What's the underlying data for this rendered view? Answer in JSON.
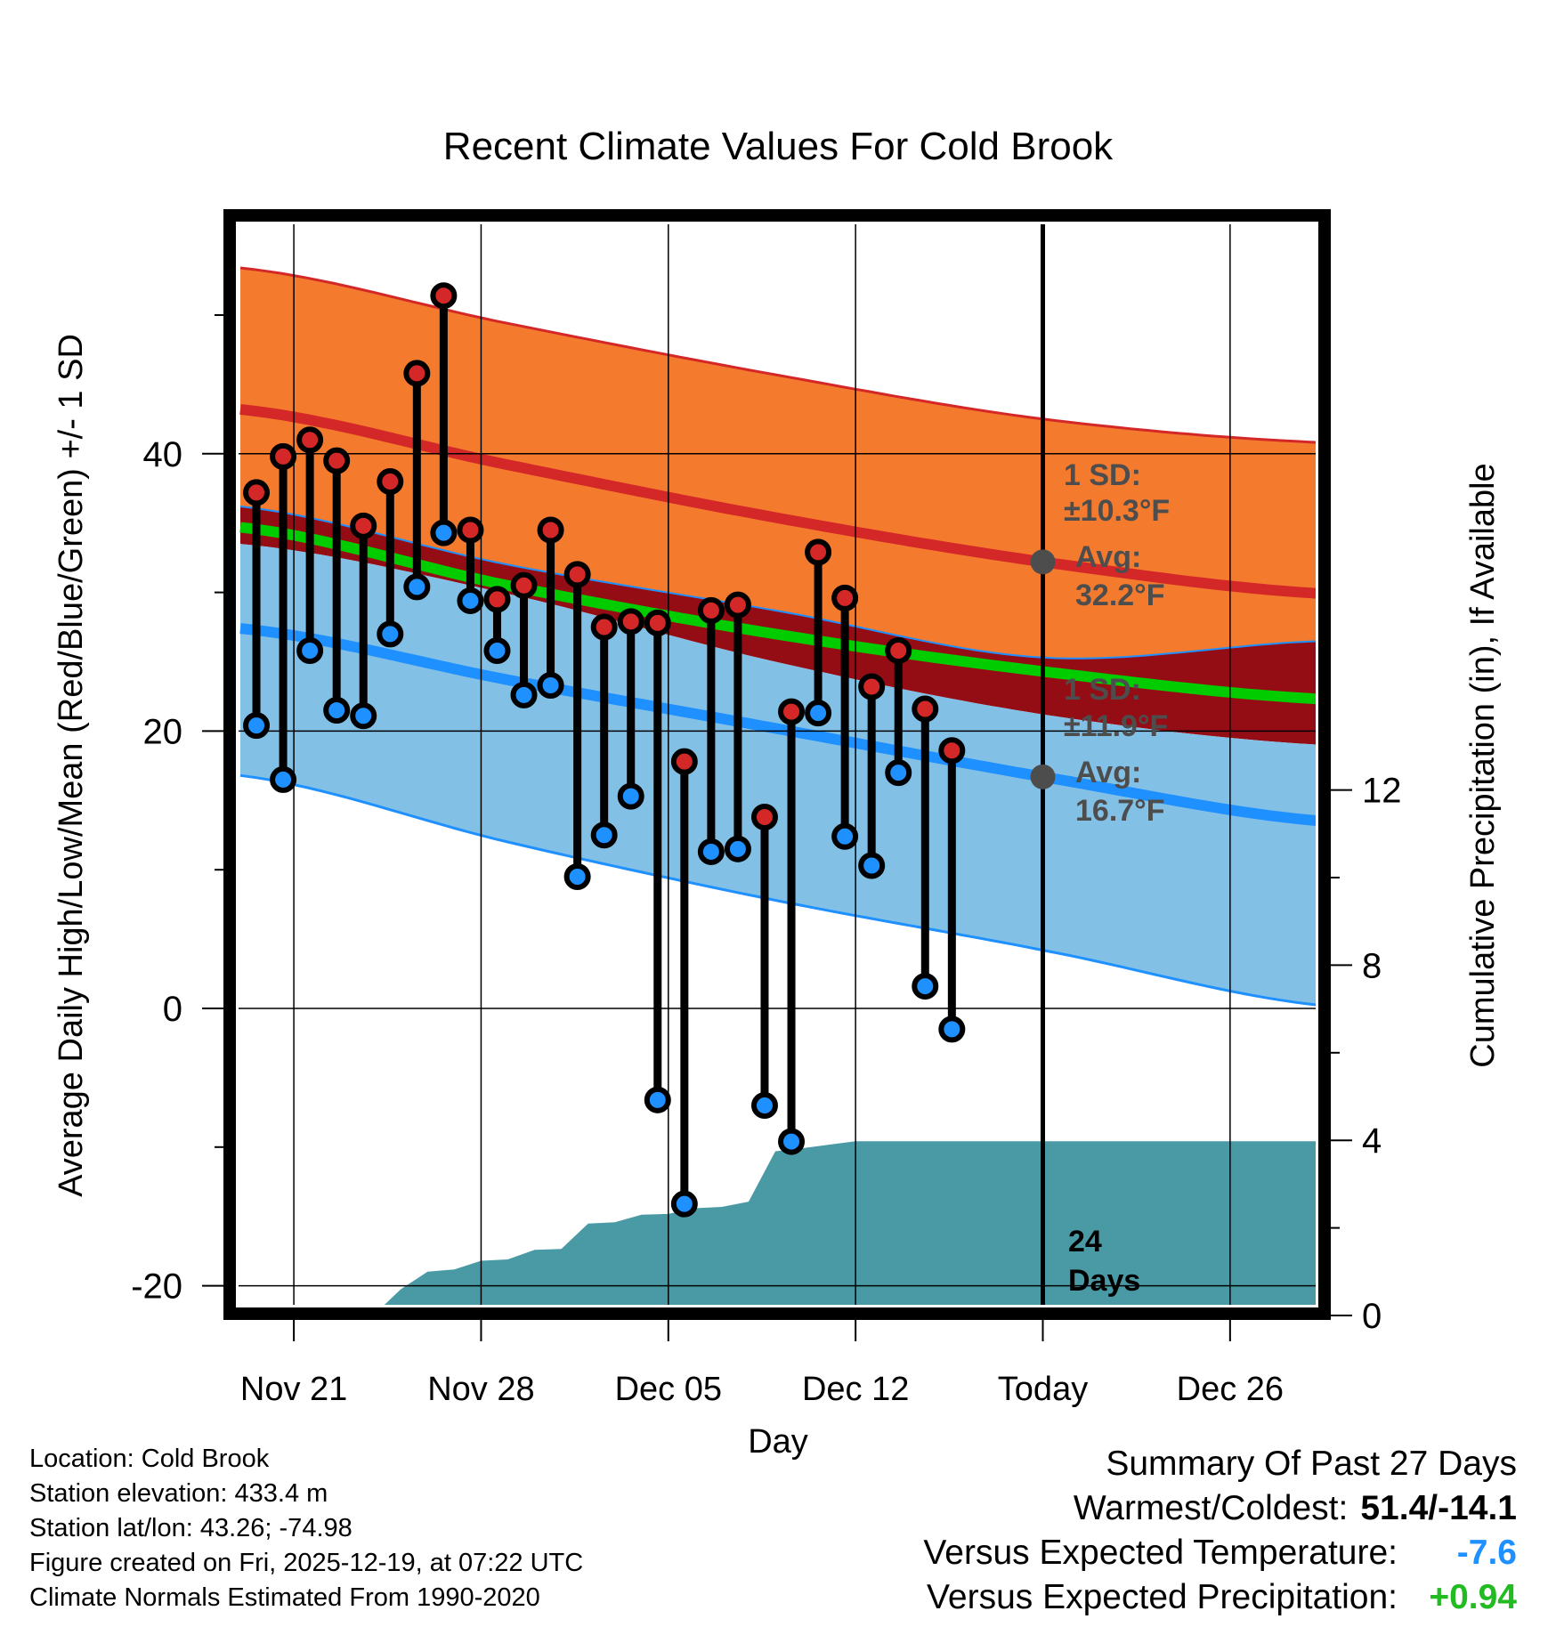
{
  "chart_data": {
    "type": "line",
    "title": "Recent Climate Values For Cold Brook",
    "xlabel": "Day",
    "ylabel": "Average Daily High/Low/Mean (Red/Blue/Green) +/- 1 SD",
    "y2label": "Cumulative Precipitation (in), If Available",
    "x_tick_labels": [
      "Nov 21",
      "Nov 28",
      "Dec 05",
      "Dec 12",
      "Today",
      "Dec 26"
    ],
    "x_tick_days": [
      2,
      9,
      16,
      23,
      30,
      37
    ],
    "today_day": 30,
    "x_range": [
      0,
      40.5
    ],
    "ylim": [
      -22,
      55
    ],
    "y_ticks": [
      -20,
      0,
      20,
      40
    ],
    "y2lim": [
      0,
      25
    ],
    "y2_ticks": [
      0,
      4,
      8,
      12
    ],
    "normals": {
      "days": [
        0,
        10,
        20,
        30,
        40.5
      ],
      "high_mean": [
        43.2,
        39.2,
        35.4,
        32.2,
        29.9
      ],
      "high_upper": [
        53.4,
        49.4,
        45.7,
        42.5,
        40.8
      ],
      "high_lower": [
        36.2,
        32.0,
        28.7,
        25.3,
        26.5
      ],
      "mean": [
        34.7,
        30.5,
        27.0,
        24.3,
        22.3
      ],
      "low_mean": [
        27.4,
        23.7,
        20.2,
        16.7,
        13.5
      ],
      "low_upper": [
        33.5,
        29.9,
        25.0,
        21.2,
        19.0
      ],
      "low_lower": [
        16.8,
        12.0,
        7.8,
        4.2,
        0.2
      ]
    },
    "series": [
      {
        "name": "Daily High",
        "color": "#d42828",
        "days": [
          0.6,
          1.6,
          2.6,
          3.6,
          4.6,
          5.6,
          6.6,
          7.6,
          8.6,
          9.6,
          10.6,
          11.6,
          12.6,
          13.6,
          14.6,
          15.6,
          16.6,
          17.6,
          18.6,
          19.6,
          20.6,
          21.6,
          22.6,
          23.6,
          24.6,
          25.6,
          26.6
        ],
        "values": [
          37.2,
          39.8,
          41.0,
          39.5,
          34.8,
          38.0,
          45.8,
          51.4,
          34.5,
          29.5,
          30.5,
          34.5,
          31.3,
          27.5,
          27.9,
          27.8,
          17.8,
          28.7,
          29.1,
          13.8,
          21.4,
          32.9,
          29.6,
          23.2,
          25.8,
          21.6,
          18.6
        ]
      },
      {
        "name": "Daily Low",
        "color": "#1e90ff",
        "days": [
          0.6,
          1.6,
          2.6,
          3.6,
          4.6,
          5.6,
          6.6,
          7.6,
          8.6,
          9.6,
          10.6,
          11.6,
          12.6,
          13.6,
          14.6,
          15.6,
          16.6,
          17.6,
          18.6,
          19.6,
          20.6,
          21.6,
          22.6,
          23.6,
          24.6,
          25.6,
          26.6
        ],
        "values": [
          20.4,
          16.5,
          25.8,
          21.5,
          21.1,
          27.0,
          30.4,
          34.3,
          29.4,
          25.8,
          22.6,
          23.3,
          9.5,
          12.5,
          15.3,
          -6.6,
          -14.1,
          11.3,
          11.5,
          -7.0,
          -9.6,
          21.3,
          12.4,
          10.3,
          17.0,
          1.6,
          -1.5
        ]
      },
      {
        "name": "Cumulative Precipitation",
        "color": "#4a9aa5",
        "days": [
          0,
          4,
          5,
          6,
          7,
          8,
          9,
          10,
          11,
          12,
          13,
          14,
          15,
          16,
          17,
          18,
          19,
          20,
          21,
          22,
          23,
          40.5
        ],
        "values": [
          0,
          0,
          0.02,
          0.6,
          1.0,
          1.05,
          1.25,
          1.28,
          1.5,
          1.52,
          2.1,
          2.13,
          2.3,
          2.32,
          2.45,
          2.48,
          2.6,
          3.75,
          3.82,
          3.9,
          3.98,
          3.98
        ]
      }
    ],
    "annotations": {
      "high_sd_label": "1 SD:",
      "high_sd_value": "±10.3°F",
      "high_avg_label": "Avg:",
      "high_avg_value": "32.2°F",
      "low_sd_label": "1 SD:",
      "low_sd_value": "±11.9°F",
      "low_avg_label": "Avg:",
      "low_avg_value": "16.7°F",
      "days_count": "24",
      "days_word": "Days"
    }
  },
  "colors": {
    "high_band": "#f47a2e",
    "high_line": "#d42828",
    "mid_band": "#950d14",
    "mean_line": "#00cc00",
    "low_band": "#82c0e6",
    "low_line": "#1e90ff",
    "precip": "#4a9aa5",
    "annotation": "#4d4d4d",
    "positive": "#22bb22",
    "negative": "#1e90ff"
  },
  "info": {
    "location": "Location: Cold Brook",
    "elevation": "Station elevation: 433.4 m",
    "latlon": "Station lat/lon: 43.26; -74.98",
    "created": "Figure created on Fri, 2025-12-19, at 07:22 UTC",
    "normals": "Climate Normals Estimated From 1990-2020"
  },
  "summary": {
    "title": "Summary Of Past 27 Days",
    "warmest_label": "Warmest/Coldest:",
    "warmest_value": "51.4/-14.1",
    "temp_label": "Versus Expected Temperature:",
    "temp_value": "-7.6",
    "precip_label": "Versus Expected Precipitation:",
    "precip_value": "+0.94"
  }
}
